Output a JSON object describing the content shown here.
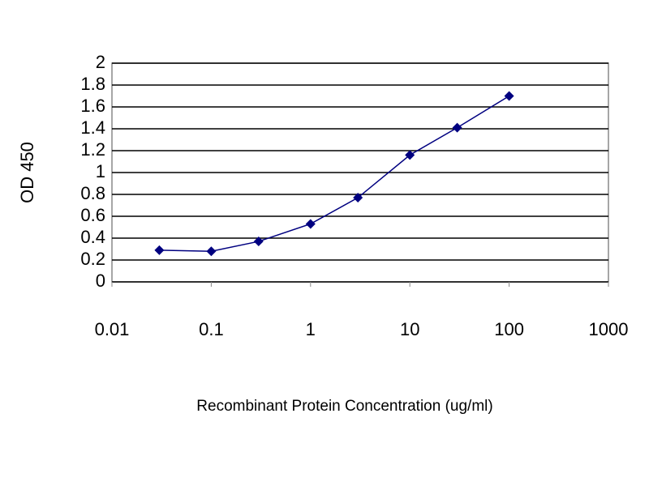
{
  "chart_data": {
    "type": "line",
    "x_label": "Recombinant Protein Concentration (ug/ml)",
    "y_label": "OD 450",
    "x": [
      0.03,
      0.1,
      0.3,
      1,
      3,
      10,
      30,
      100
    ],
    "series": [
      {
        "color": "#000080",
        "values": [
          0.29,
          0.28,
          0.37,
          0.53,
          0.77,
          1.16,
          1.41,
          1.7
        ]
      }
    ],
    "xscale": "log",
    "xlim": [
      0.01,
      1000
    ],
    "xticks": [
      0.01,
      0.1,
      1,
      10,
      100,
      1000
    ],
    "ylim": [
      0,
      2
    ],
    "yticks": [
      0,
      0.2,
      0.4,
      0.6,
      0.8,
      1,
      1.2,
      1.4,
      1.6,
      1.8,
      2
    ],
    "grid": true
  }
}
